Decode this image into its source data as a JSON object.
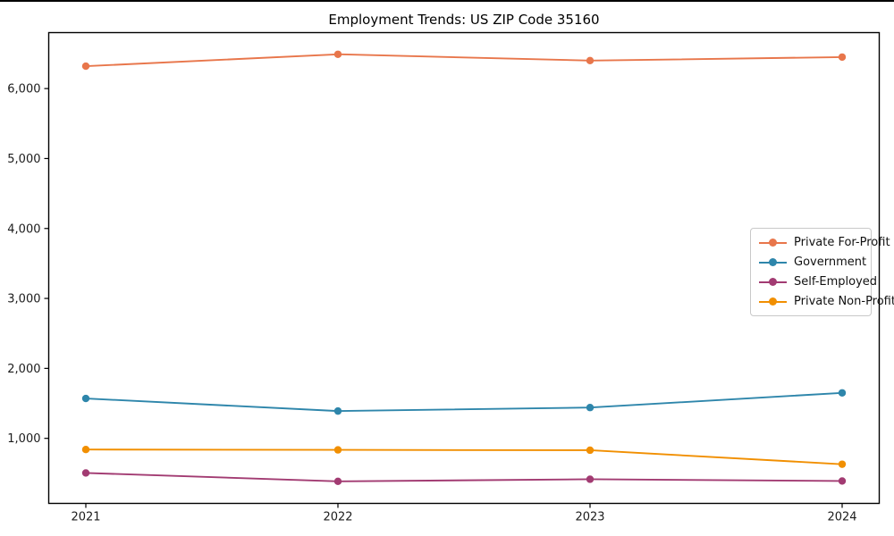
{
  "chart_data": {
    "type": "line",
    "title": "Employment Trends: US ZIP Code 35160",
    "x": [
      2021,
      2022,
      2023,
      2024
    ],
    "x_tick_labels": [
      "2021",
      "2022",
      "2023",
      "2024"
    ],
    "series": [
      {
        "name": "Private For-Profit",
        "color": "#E8764B",
        "values": [
          6320,
          6490,
          6400,
          6450
        ]
      },
      {
        "name": "Government",
        "color": "#2E86AB",
        "values": [
          1570,
          1390,
          1440,
          1650
        ]
      },
      {
        "name": "Self-Employed",
        "color": "#A23B72",
        "values": [
          505,
          385,
          415,
          390
        ]
      },
      {
        "name": "Private Non-Profit",
        "color": "#F18F01",
        "values": [
          840,
          835,
          830,
          630
        ]
      }
    ],
    "yticks": [
      1000,
      2000,
      3000,
      4000,
      5000,
      6000
    ],
    "ytick_labels": [
      "1,000",
      "2,000",
      "3,000",
      "4,000",
      "5,000",
      "6,000"
    ],
    "ylim": [
      70,
      6800
    ],
    "xlabel": "",
    "ylabel": "",
    "grid": false,
    "marker": "circle",
    "legend_position": "center-right",
    "background_color": "#ffffff",
    "axis_color": "#000000"
  }
}
